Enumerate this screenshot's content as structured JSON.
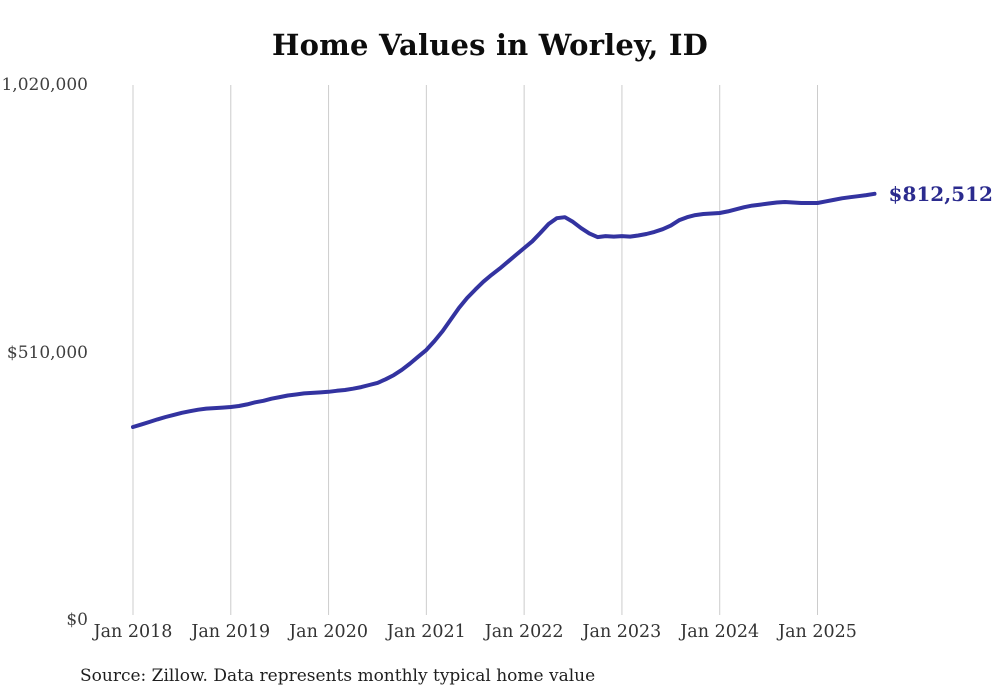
{
  "chart": {
    "title": "Home Values in Worley, ID",
    "source": "Source: Zillow. Data represents monthly typical home value",
    "latest_value_label": "$812,512",
    "colors": {
      "line": "#3333a0",
      "end_label": "#2b2b8e",
      "gridline": "#cccccc",
      "title_text": "#0d0d0d",
      "tick_text": "#3f3f3f",
      "source_text": "#1e1e1e",
      "background": "#ffffff"
    }
  },
  "chart_data": {
    "type": "line",
    "title": "Home Values in Worley, ID",
    "xlabel": "",
    "ylabel": "",
    "ylim": [
      0,
      1020000
    ],
    "grid": "vertical-only",
    "legend": "none",
    "y_tick_values": [
      0,
      510000,
      1020000
    ],
    "y_tick_labels": [
      "$0",
      "$510,000",
      "$1,020,000"
    ],
    "x_tick_labels": [
      "Jan 2018",
      "Jan 2019",
      "Jan 2020",
      "Jan 2021",
      "Jan 2022",
      "Jan 2023",
      "Jan 2024",
      "Jan 2025"
    ],
    "x": [
      "2018-01",
      "2018-02",
      "2018-03",
      "2018-04",
      "2018-05",
      "2018-06",
      "2018-07",
      "2018-08",
      "2018-09",
      "2018-10",
      "2018-11",
      "2018-12",
      "2019-01",
      "2019-02",
      "2019-03",
      "2019-04",
      "2019-05",
      "2019-06",
      "2019-07",
      "2019-08",
      "2019-09",
      "2019-10",
      "2019-11",
      "2019-12",
      "2020-01",
      "2020-02",
      "2020-03",
      "2020-04",
      "2020-05",
      "2020-06",
      "2020-07",
      "2020-08",
      "2020-09",
      "2020-10",
      "2020-11",
      "2020-12",
      "2021-01",
      "2021-02",
      "2021-03",
      "2021-04",
      "2021-05",
      "2021-06",
      "2021-07",
      "2021-08",
      "2021-09",
      "2021-10",
      "2021-11",
      "2021-12",
      "2022-01",
      "2022-02",
      "2022-03",
      "2022-04",
      "2022-05",
      "2022-06",
      "2022-07",
      "2022-08",
      "2022-09",
      "2022-10",
      "2022-11",
      "2022-12",
      "2023-01",
      "2023-02",
      "2023-03",
      "2023-04",
      "2023-05",
      "2023-06",
      "2023-07",
      "2023-08",
      "2023-09",
      "2023-10",
      "2023-11",
      "2023-12",
      "2024-01",
      "2024-02",
      "2024-03",
      "2024-04",
      "2024-05",
      "2024-06",
      "2024-07",
      "2024-08",
      "2024-09",
      "2024-10",
      "2024-11",
      "2024-12",
      "2025-01",
      "2025-02",
      "2025-03",
      "2025-04",
      "2025-05",
      "2025-06",
      "2025-07",
      "2025-08"
    ],
    "values": [
      368000,
      372500,
      377500,
      382500,
      387000,
      391000,
      395000,
      398000,
      401000,
      403000,
      404000,
      405000,
      406000,
      408000,
      411000,
      415000,
      418000,
      422000,
      425000,
      428000,
      430000,
      432000,
      433000,
      434000,
      435000,
      437000,
      438500,
      441000,
      444000,
      448000,
      452000,
      459000,
      467000,
      477000,
      489000,
      502000,
      515000,
      532000,
      551000,
      573000,
      595000,
      614000,
      630000,
      645000,
      658000,
      670000,
      683000,
      696000,
      709000,
      722000,
      738000,
      755000,
      766000,
      768000,
      759000,
      747000,
      737000,
      730000,
      732000,
      731000,
      732000,
      731000,
      733000,
      736000,
      740000,
      745000,
      752000,
      762000,
      768000,
      772000,
      774000,
      775000,
      776000,
      779000,
      783000,
      787000,
      790000,
      792000,
      794000,
      796000,
      797000,
      796000,
      795000,
      795000,
      795000,
      798000,
      801000,
      804000,
      806000,
      808000,
      810000,
      812512
    ],
    "annotation": {
      "text": "$812,512",
      "x": "2025-08",
      "y": 812512
    }
  }
}
